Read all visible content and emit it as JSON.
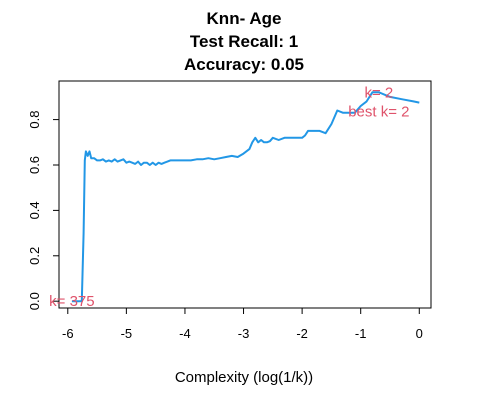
{
  "chart_data": {
    "type": "line",
    "title_lines": [
      "Knn- Age",
      "Test Recall:  1",
      "Accuracy:  0.05"
    ],
    "xlabel": "Complexity (log(1/k))",
    "ylabel": "",
    "xlim": [
      -6.15,
      0.2
    ],
    "ylim": [
      -0.03,
      0.97
    ],
    "x_ticks": [
      -6,
      -5,
      -4,
      -3,
      -2,
      -1,
      0
    ],
    "x_tick_labels": [
      "-6",
      "-5",
      "-4",
      "-3",
      "-2",
      "-1",
      "0"
    ],
    "y_ticks": [
      0.0,
      0.2,
      0.4,
      0.6,
      0.8
    ],
    "y_tick_labels": [
      "0.0",
      "0.2",
      "0.4",
      "0.6",
      "0.8"
    ],
    "series": [
      {
        "color": "#2297E6",
        "x": [
          -5.93,
          -5.85,
          -5.79,
          -5.76,
          -5.73,
          -5.71,
          -5.69,
          -5.66,
          -5.63,
          -5.6,
          -5.55,
          -5.5,
          -5.45,
          -5.4,
          -5.35,
          -5.3,
          -5.25,
          -5.2,
          -5.15,
          -5.1,
          -5.05,
          -5.0,
          -4.95,
          -4.9,
          -4.85,
          -4.8,
          -4.75,
          -4.7,
          -4.65,
          -4.6,
          -4.55,
          -4.5,
          -4.45,
          -4.4,
          -4.35,
          -4.3,
          -4.25,
          -4.2,
          -4.1,
          -4.0,
          -3.9,
          -3.8,
          -3.7,
          -3.6,
          -3.5,
          -3.4,
          -3.3,
          -3.2,
          -3.1,
          -3.0,
          -2.9,
          -2.85,
          -2.8,
          -2.75,
          -2.7,
          -2.65,
          -2.6,
          -2.55,
          -2.5,
          -2.4,
          -2.3,
          -2.2,
          -2.1,
          -2.0,
          -1.95,
          -1.9,
          -1.85,
          -1.8,
          -1.7,
          -1.6,
          -1.5,
          -1.4,
          -1.3,
          -1.2,
          -1.1,
          -1.0,
          -0.9,
          -0.8,
          -0.69,
          -0.5,
          -0.3,
          -0.1,
          0.0
        ],
        "y": [
          0.0,
          0.0,
          0.0,
          0.0,
          0.3,
          0.62,
          0.66,
          0.64,
          0.66,
          0.63,
          0.63,
          0.62,
          0.62,
          0.625,
          0.615,
          0.62,
          0.615,
          0.625,
          0.615,
          0.62,
          0.625,
          0.61,
          0.615,
          0.61,
          0.605,
          0.615,
          0.6,
          0.61,
          0.61,
          0.6,
          0.61,
          0.6,
          0.61,
          0.605,
          0.61,
          0.615,
          0.62,
          0.62,
          0.62,
          0.62,
          0.62,
          0.625,
          0.625,
          0.63,
          0.625,
          0.63,
          0.635,
          0.64,
          0.635,
          0.65,
          0.67,
          0.7,
          0.72,
          0.7,
          0.71,
          0.7,
          0.7,
          0.705,
          0.72,
          0.71,
          0.72,
          0.72,
          0.72,
          0.72,
          0.73,
          0.75,
          0.75,
          0.75,
          0.75,
          0.74,
          0.78,
          0.84,
          0.83,
          0.83,
          0.83,
          0.86,
          0.88,
          0.92,
          0.92,
          0.9,
          0.89,
          0.88,
          0.875
        ]
      }
    ],
    "annotations": [
      {
        "text": "k= 2",
        "x": -0.69,
        "y": 0.92
      },
      {
        "text": "best k= 2",
        "x": -0.69,
        "y": 0.835
      },
      {
        "text": "k= 375",
        "x": -5.93,
        "y": 0.0
      }
    ],
    "grid": false,
    "legend": "none"
  }
}
